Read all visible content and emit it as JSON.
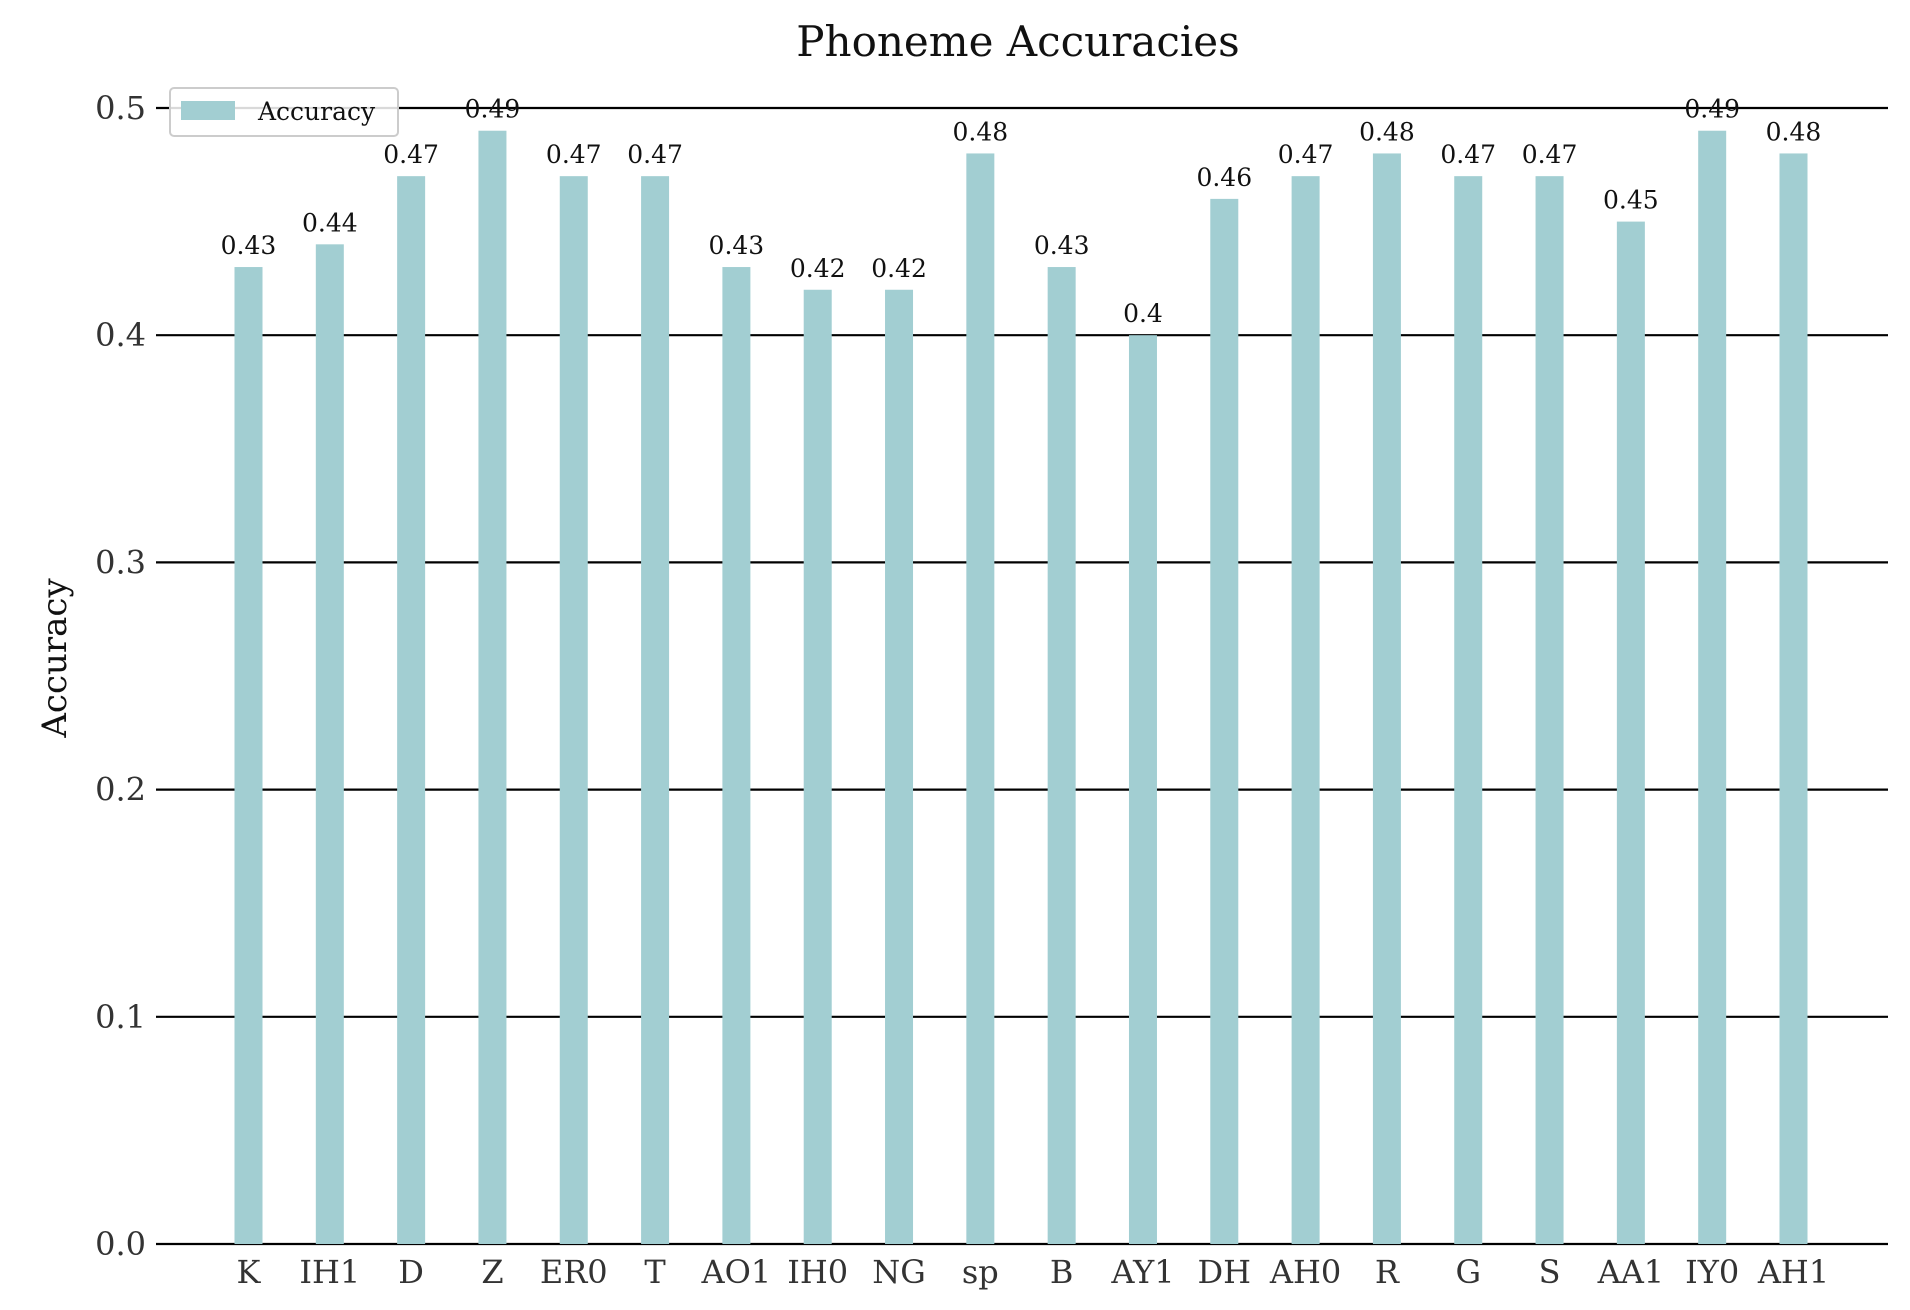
{
  "chart_data": {
    "type": "bar",
    "title": "Phoneme Accuracies",
    "xlabel": "",
    "ylabel": "Accuracy",
    "categories": [
      "K",
      "IH1",
      "D",
      "Z",
      "ER0",
      "T",
      "AO1",
      "IH0",
      "NG",
      "sp",
      "B",
      "AY1",
      "DH",
      "AH0",
      "R",
      "G",
      "S",
      "AA1",
      "IY0",
      "AH1"
    ],
    "series": [
      {
        "name": "Accuracy",
        "color": "#a2ced2",
        "values": [
          0.43,
          0.44,
          0.47,
          0.49,
          0.47,
          0.47,
          0.43,
          0.42,
          0.42,
          0.48,
          0.43,
          0.4,
          0.46,
          0.47,
          0.48,
          0.47,
          0.47,
          0.45,
          0.49,
          0.48
        ]
      }
    ],
    "data_labels": [
      "0.43",
      "0.44",
      "0.47",
      "0.49",
      "0.47",
      "0.47",
      "0.43",
      "0.42",
      "0.42",
      "0.48",
      "0.43",
      "0.4",
      "0.46",
      "0.47",
      "0.48",
      "0.47",
      "0.47",
      "0.45",
      "0.49",
      "0.48"
    ],
    "ylim": [
      0,
      0.5
    ],
    "yticks": [
      0.0,
      0.1,
      0.2,
      0.3,
      0.4,
      0.5
    ],
    "ytick_labels": [
      "0.0",
      "0.1",
      "0.2",
      "0.3",
      "0.4",
      "0.5"
    ],
    "grid": "horizontal",
    "legend": {
      "position": "top-left",
      "entries": [
        "Accuracy"
      ]
    }
  }
}
